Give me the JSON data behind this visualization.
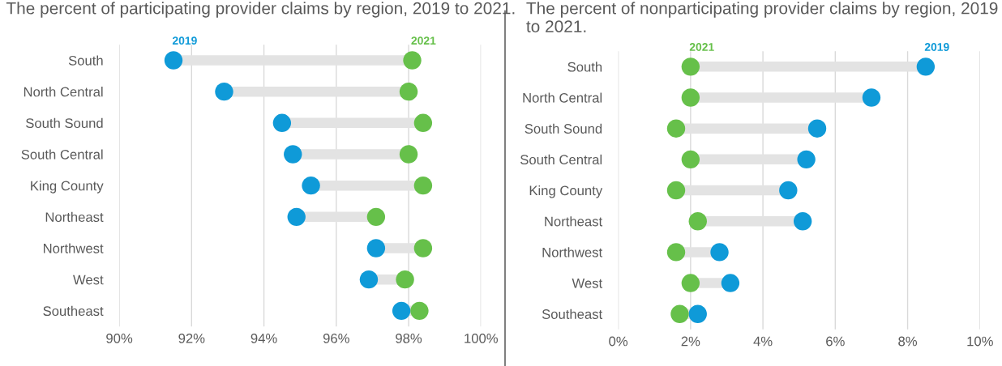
{
  "chart_data": [
    {
      "type": "scatter",
      "title": "The percent of participating provider claims by region, 2019 to 2021.",
      "orientation": "horizontal",
      "categories": [
        "South",
        "North Central",
        "South Sound",
        "South Central",
        "King County",
        "Northeast",
        "Northwest",
        "West",
        "Southeast"
      ],
      "series": [
        {
          "name": "2019",
          "color": "#0f9ad8",
          "values": [
            91.5,
            92.9,
            94.5,
            94.8,
            95.3,
            94.9,
            97.1,
            96.9,
            97.8
          ]
        },
        {
          "name": "2021",
          "color": "#66c04a",
          "values": [
            98.1,
            98.0,
            98.4,
            98.0,
            98.4,
            97.1,
            98.4,
            97.9,
            98.3
          ]
        }
      ],
      "xlim": [
        90,
        100
      ],
      "xticks": [
        {
          "value": 90,
          "label": "90%"
        },
        {
          "value": 92,
          "label": "92%"
        },
        {
          "value": 94,
          "label": "94%"
        },
        {
          "value": 96,
          "label": "96%"
        },
        {
          "value": 98,
          "label": "98%"
        },
        {
          "value": 100,
          "label": "100%"
        }
      ],
      "grid": "x",
      "marker": "circle"
    },
    {
      "type": "scatter",
      "title": "The percent of nonparticipating provider claims by region, 2019 to 2021.",
      "orientation": "horizontal",
      "categories": [
        "South",
        "North Central",
        "South Sound",
        "South Central",
        "King County",
        "Northeast",
        "Northwest",
        "West",
        "Southeast"
      ],
      "series": [
        {
          "name": "2019",
          "color": "#0f9ad8",
          "values": [
            8.5,
            7.0,
            5.5,
            5.2,
            4.7,
            5.1,
            2.8,
            3.1,
            2.2
          ]
        },
        {
          "name": "2021",
          "color": "#66c04a",
          "values": [
            2.0,
            2.0,
            1.6,
            2.0,
            1.6,
            2.2,
            1.6,
            2.0,
            1.7
          ]
        }
      ],
      "xlim": [
        0,
        10
      ],
      "xticks": [
        {
          "value": 0,
          "label": "0%"
        },
        {
          "value": 2,
          "label": "2%"
        },
        {
          "value": 4,
          "label": "4%"
        },
        {
          "value": 6,
          "label": "6%"
        },
        {
          "value": 8,
          "label": "8%"
        },
        {
          "value": 10,
          "label": "10%"
        }
      ],
      "grid": "x",
      "marker": "circle"
    }
  ]
}
